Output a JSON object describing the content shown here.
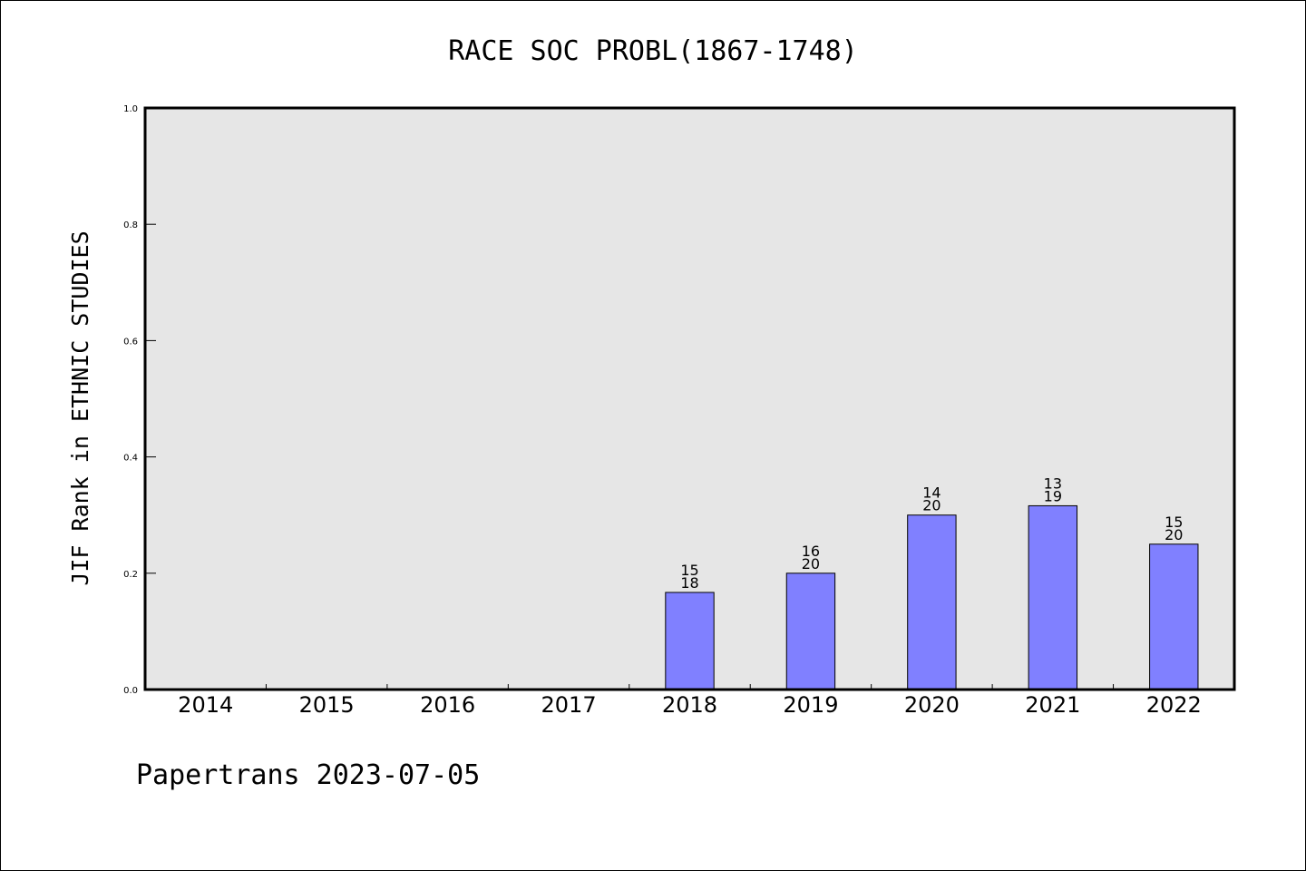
{
  "footer": "Papertrans 2023-07-05",
  "colors": {
    "bar_fill": "#8080ff",
    "plot_background": "#e6e6e6",
    "axis": "#000000"
  },
  "chart_data": {
    "type": "bar",
    "title": "RACE SOC PROBL(1867-1748)",
    "xlabel": "",
    "ylabel": "JIF Rank in ETHNIC STUDIES",
    "ylim": [
      0.0,
      1.0
    ],
    "yticks": [
      "0.0",
      "0.2",
      "0.4",
      "0.6",
      "0.8",
      "1.0"
    ],
    "categories": [
      "2014",
      "2015",
      "2016",
      "2017",
      "2018",
      "2019",
      "2020",
      "2021",
      "2022"
    ],
    "values": [
      null,
      null,
      null,
      null,
      0.167,
      0.2,
      0.3,
      0.316,
      0.25
    ],
    "labels": [
      null,
      null,
      null,
      null,
      [
        "15",
        "18"
      ],
      [
        "16",
        "20"
      ],
      [
        "14",
        "20"
      ],
      [
        "13",
        "19"
      ],
      [
        "15",
        "20"
      ]
    ],
    "grid": false,
    "legend": "none"
  }
}
